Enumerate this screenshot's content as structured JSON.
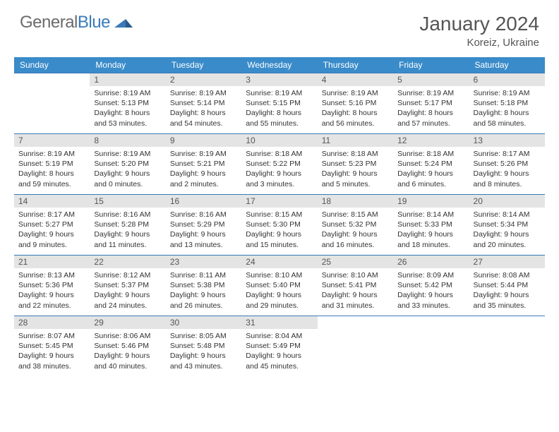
{
  "logo": {
    "part1": "General",
    "part2": "Blue",
    "accent": "#3a7ab8"
  },
  "header": {
    "title": "January 2024",
    "location": "Koreiz, Ukraine"
  },
  "weekdays": [
    "Sunday",
    "Monday",
    "Tuesday",
    "Wednesday",
    "Thursday",
    "Friday",
    "Saturday"
  ],
  "colors": {
    "headerBg": "#3a8bc9",
    "rule": "#3a7ab8",
    "dayBg": "#e4e4e4"
  },
  "startCol": 1,
  "days": [
    {
      "n": 1,
      "sr": "8:19 AM",
      "ss": "5:13 PM",
      "dl": "8 hours and 53 minutes."
    },
    {
      "n": 2,
      "sr": "8:19 AM",
      "ss": "5:14 PM",
      "dl": "8 hours and 54 minutes."
    },
    {
      "n": 3,
      "sr": "8:19 AM",
      "ss": "5:15 PM",
      "dl": "8 hours and 55 minutes."
    },
    {
      "n": 4,
      "sr": "8:19 AM",
      "ss": "5:16 PM",
      "dl": "8 hours and 56 minutes."
    },
    {
      "n": 5,
      "sr": "8:19 AM",
      "ss": "5:17 PM",
      "dl": "8 hours and 57 minutes."
    },
    {
      "n": 6,
      "sr": "8:19 AM",
      "ss": "5:18 PM",
      "dl": "8 hours and 58 minutes."
    },
    {
      "n": 7,
      "sr": "8:19 AM",
      "ss": "5:19 PM",
      "dl": "8 hours and 59 minutes."
    },
    {
      "n": 8,
      "sr": "8:19 AM",
      "ss": "5:20 PM",
      "dl": "9 hours and 0 minutes."
    },
    {
      "n": 9,
      "sr": "8:19 AM",
      "ss": "5:21 PM",
      "dl": "9 hours and 2 minutes."
    },
    {
      "n": 10,
      "sr": "8:18 AM",
      "ss": "5:22 PM",
      "dl": "9 hours and 3 minutes."
    },
    {
      "n": 11,
      "sr": "8:18 AM",
      "ss": "5:23 PM",
      "dl": "9 hours and 5 minutes."
    },
    {
      "n": 12,
      "sr": "8:18 AM",
      "ss": "5:24 PM",
      "dl": "9 hours and 6 minutes."
    },
    {
      "n": 13,
      "sr": "8:17 AM",
      "ss": "5:26 PM",
      "dl": "9 hours and 8 minutes."
    },
    {
      "n": 14,
      "sr": "8:17 AM",
      "ss": "5:27 PM",
      "dl": "9 hours and 9 minutes."
    },
    {
      "n": 15,
      "sr": "8:16 AM",
      "ss": "5:28 PM",
      "dl": "9 hours and 11 minutes."
    },
    {
      "n": 16,
      "sr": "8:16 AM",
      "ss": "5:29 PM",
      "dl": "9 hours and 13 minutes."
    },
    {
      "n": 17,
      "sr": "8:15 AM",
      "ss": "5:30 PM",
      "dl": "9 hours and 15 minutes."
    },
    {
      "n": 18,
      "sr": "8:15 AM",
      "ss": "5:32 PM",
      "dl": "9 hours and 16 minutes."
    },
    {
      "n": 19,
      "sr": "8:14 AM",
      "ss": "5:33 PM",
      "dl": "9 hours and 18 minutes."
    },
    {
      "n": 20,
      "sr": "8:14 AM",
      "ss": "5:34 PM",
      "dl": "9 hours and 20 minutes."
    },
    {
      "n": 21,
      "sr": "8:13 AM",
      "ss": "5:36 PM",
      "dl": "9 hours and 22 minutes."
    },
    {
      "n": 22,
      "sr": "8:12 AM",
      "ss": "5:37 PM",
      "dl": "9 hours and 24 minutes."
    },
    {
      "n": 23,
      "sr": "8:11 AM",
      "ss": "5:38 PM",
      "dl": "9 hours and 26 minutes."
    },
    {
      "n": 24,
      "sr": "8:10 AM",
      "ss": "5:40 PM",
      "dl": "9 hours and 29 minutes."
    },
    {
      "n": 25,
      "sr": "8:10 AM",
      "ss": "5:41 PM",
      "dl": "9 hours and 31 minutes."
    },
    {
      "n": 26,
      "sr": "8:09 AM",
      "ss": "5:42 PM",
      "dl": "9 hours and 33 minutes."
    },
    {
      "n": 27,
      "sr": "8:08 AM",
      "ss": "5:44 PM",
      "dl": "9 hours and 35 minutes."
    },
    {
      "n": 28,
      "sr": "8:07 AM",
      "ss": "5:45 PM",
      "dl": "9 hours and 38 minutes."
    },
    {
      "n": 29,
      "sr": "8:06 AM",
      "ss": "5:46 PM",
      "dl": "9 hours and 40 minutes."
    },
    {
      "n": 30,
      "sr": "8:05 AM",
      "ss": "5:48 PM",
      "dl": "9 hours and 43 minutes."
    },
    {
      "n": 31,
      "sr": "8:04 AM",
      "ss": "5:49 PM",
      "dl": "9 hours and 45 minutes."
    }
  ],
  "labels": {
    "sunrise": "Sunrise:",
    "sunset": "Sunset:",
    "daylight": "Daylight:"
  }
}
